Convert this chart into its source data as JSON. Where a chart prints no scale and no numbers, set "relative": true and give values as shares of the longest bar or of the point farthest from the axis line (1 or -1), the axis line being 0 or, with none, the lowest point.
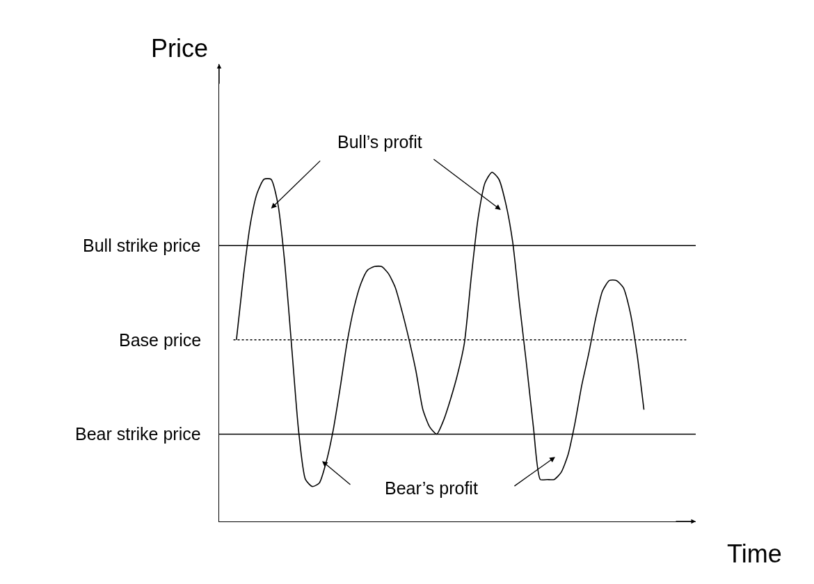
{
  "chart_data": {
    "type": "line",
    "relative": true,
    "xlabel": "Time",
    "ylabel": "Price",
    "color": "#000000",
    "categories": [
      null,
      null,
      null,
      null,
      null,
      null,
      null,
      null,
      null,
      null,
      null,
      null,
      null,
      null,
      null,
      null,
      null,
      null,
      null,
      null,
      null,
      null,
      null,
      null,
      null,
      null,
      null,
      null,
      null,
      null,
      null,
      null,
      null,
      null,
      null,
      null,
      null,
      null,
      null,
      null,
      null,
      null,
      null,
      null,
      null,
      null,
      null,
      null,
      null,
      null,
      null,
      null,
      null,
      null,
      null,
      null,
      null,
      null,
      null,
      null,
      null,
      null,
      null,
      null,
      null,
      null,
      null,
      null,
      null
    ],
    "values": [
      null,
      null,
      0.52,
      0.7,
      0.85,
      0.94,
      0.98,
      0.98,
      0.91,
      0.74,
      0.5,
      0.26,
      0.12,
      0.1,
      0.11,
      0.17,
      0.26,
      0.38,
      0.51,
      0.61,
      0.68,
      0.72,
      0.73,
      0.73,
      0.71,
      0.67,
      0.6,
      0.52,
      0.43,
      0.32,
      0.27,
      0.25,
      0.29,
      0.35,
      0.42,
      0.51,
      0.7,
      0.87,
      0.97,
      1,
      0.98,
      0.91,
      0.8,
      0.62,
      0.45,
      0.27,
      0.12,
      0.12,
      0.12,
      0.14,
      0.19,
      0.28,
      0.39,
      0.48,
      0.58,
      0.66,
      0.69,
      0.69,
      0.67,
      0.6,
      0.48,
      0.32,
      null,
      null,
      null,
      null,
      null,
      null,
      null
    ],
    "ref_lines": [
      {
        "axis": "y",
        "value": 0.79,
        "label": "Bull strike price",
        "line_style": "solid"
      },
      {
        "axis": "y",
        "value": 0.52,
        "label": "Base price",
        "line_style": "dotted"
      },
      {
        "axis": "y",
        "value": 0.25,
        "label": "Bear strike price",
        "line_style": "solid"
      }
    ],
    "annotations": [
      "Bull’s profit",
      "Bear’s profit"
    ]
  }
}
